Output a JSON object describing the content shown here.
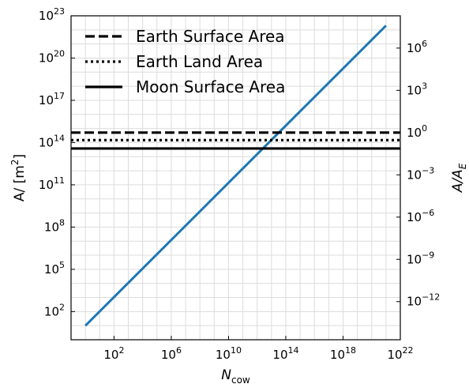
{
  "chart_data": {
    "type": "line",
    "x_scale": "log",
    "y_scale": "log",
    "xlim": [
      0.1,
      1e+22
    ],
    "ylim": [
      1.0,
      1e+23
    ],
    "x_ticks": [
      {
        "value": 100.0,
        "base": "10",
        "exp": "2"
      },
      {
        "value": 1000000.0,
        "base": "10",
        "exp": "6"
      },
      {
        "value": 10000000000.0,
        "base": "10",
        "exp": "10"
      },
      {
        "value": 100000000000000.0,
        "base": "10",
        "exp": "14"
      },
      {
        "value": 1e+18,
        "base": "10",
        "exp": "18"
      },
      {
        "value": 1e+22,
        "base": "10",
        "exp": "22"
      }
    ],
    "y_ticks": [
      {
        "value": 100.0,
        "base": "10",
        "exp": "2"
      },
      {
        "value": 100000.0,
        "base": "10",
        "exp": "5"
      },
      {
        "value": 100000000.0,
        "base": "10",
        "exp": "8"
      },
      {
        "value": 100000000000.0,
        "base": "10",
        "exp": "11"
      },
      {
        "value": 100000000000000.0,
        "base": "10",
        "exp": "14"
      },
      {
        "value": 1e+17,
        "base": "10",
        "exp": "17"
      },
      {
        "value": 1e+20,
        "base": "10",
        "exp": "20"
      },
      {
        "value": 1e+23,
        "base": "10",
        "exp": "23"
      }
    ],
    "right_axis": {
      "reference_area": 510000000000000.0,
      "ticks": [
        {
          "value": 1e-12,
          "base": "10",
          "exp": "−12"
        },
        {
          "value": 1e-09,
          "base": "10",
          "exp": "−9"
        },
        {
          "value": 1e-06,
          "base": "10",
          "exp": "−6"
        },
        {
          "value": 0.001,
          "base": "10",
          "exp": "−3"
        },
        {
          "value": 1.0,
          "base": "10",
          "exp": "0"
        },
        {
          "value": 1000.0,
          "base": "10",
          "exp": "3"
        },
        {
          "value": 1000000.0,
          "base": "10",
          "exp": "6"
        }
      ]
    },
    "xlabel": {
      "main": "N",
      "sub": "cow"
    },
    "ylabel": {
      "main": "A/ [m",
      "sup": "2",
      "end": "]"
    },
    "ylabel_right": {
      "main": "A/A",
      "sub": "E"
    },
    "grid": true,
    "legend_position": "top-left",
    "series": [
      {
        "name": "",
        "kind": "line",
        "color": "#1f77b4",
        "x": [
          1.0,
          1e+21
        ],
        "y": [
          10.0,
          2e+22
        ]
      },
      {
        "name": "Earth Surface Area",
        "kind": "hline",
        "style": "dashed",
        "color": "#000000",
        "y": 510000000000000.0
      },
      {
        "name": "Earth Land Area",
        "kind": "hline",
        "style": "dotted",
        "color": "#000000",
        "y": 149000000000000.0
      },
      {
        "name": "Moon Surface Area",
        "kind": "hline",
        "style": "solid",
        "color": "#000000",
        "y": 38000000000000.0
      }
    ]
  }
}
